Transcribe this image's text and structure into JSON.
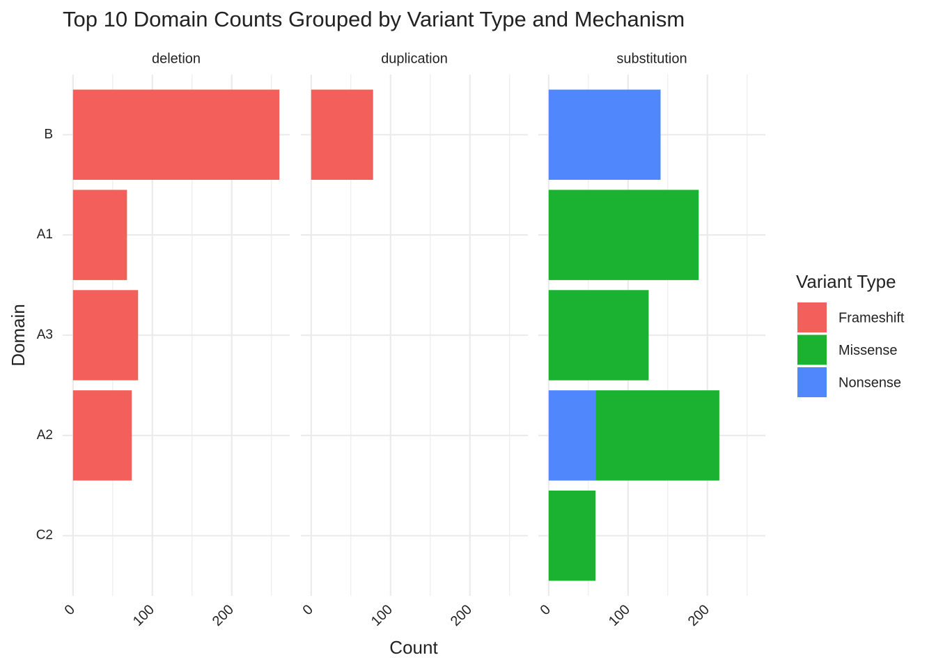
{
  "chart_data": {
    "type": "bar",
    "orientation": "horizontal",
    "title": "Top 10 Domain Counts Grouped by Variant Type and Mechanism",
    "x_label": "Count",
    "y_label": "Domain",
    "categories": [
      "B",
      "A1",
      "A3",
      "A2",
      "C2"
    ],
    "xlim": [
      -13,
      273
    ],
    "xticks": [
      0,
      100,
      200
    ],
    "minor_xticks": [
      50,
      150,
      250
    ],
    "grid": true,
    "legend": {
      "title": "Variant Type",
      "position": "right",
      "items": [
        {
          "name": "Frameshift",
          "color": "#f3605b"
        },
        {
          "name": "Missense",
          "color": "#1bb131"
        },
        {
          "name": "Nonsense",
          "color": "#5087fd"
        }
      ]
    },
    "facets": [
      {
        "title": "deletion",
        "series": [
          {
            "name": "Frameshift",
            "values": [
              260,
              68,
              82,
              74,
              null
            ]
          },
          {
            "name": "Missense",
            "values": [
              null,
              null,
              null,
              null,
              null
            ]
          },
          {
            "name": "Nonsense",
            "values": [
              null,
              null,
              null,
              null,
              null
            ]
          }
        ]
      },
      {
        "title": "duplication",
        "series": [
          {
            "name": "Frameshift",
            "values": [
              78,
              null,
              null,
              null,
              null
            ]
          },
          {
            "name": "Missense",
            "values": [
              null,
              null,
              null,
              null,
              null
            ]
          },
          {
            "name": "Nonsense",
            "values": [
              null,
              null,
              null,
              null,
              null
            ]
          }
        ]
      },
      {
        "title": "substitution",
        "series": [
          {
            "name": "Frameshift",
            "values": [
              null,
              null,
              null,
              null,
              null
            ]
          },
          {
            "name": "Missense",
            "values": [
              null,
              189,
              126,
              156,
              59
            ]
          },
          {
            "name": "Nonsense",
            "values": [
              141,
              null,
              null,
              59,
              null
            ]
          }
        ]
      }
    ]
  }
}
